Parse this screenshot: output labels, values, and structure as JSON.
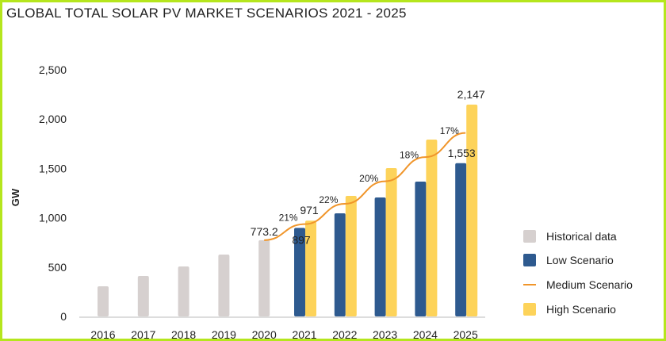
{
  "chart_data": {
    "type": "bar",
    "title": "GLOBAL TOTAL SOLAR PV MARKET SCENARIOS 2021 - 2025",
    "xlabel": "",
    "ylabel": "GW",
    "ylim": [
      0,
      2500
    ],
    "yticks": [
      0,
      500,
      1000,
      1500,
      2000,
      2500
    ],
    "ytick_labels": [
      "0",
      "500",
      "1,000",
      "1,500",
      "2,000",
      "2,500"
    ],
    "grid": false,
    "legend_position": "right",
    "categories": [
      "2016",
      "2017",
      "2018",
      "2019",
      "2020",
      "2021",
      "2022",
      "2023",
      "2024",
      "2025"
    ],
    "series": [
      {
        "name": "Historical data",
        "type": "bar",
        "color": "#d6d0cf",
        "values": [
          305,
          410,
          506,
          627,
          773.2,
          null,
          null,
          null,
          null,
          null
        ]
      },
      {
        "name": "Low Scenario",
        "type": "bar",
        "color": "#2e5a8f",
        "values": [
          null,
          null,
          null,
          null,
          null,
          897,
          1045,
          1206,
          1367,
          1553
        ]
      },
      {
        "name": "Medium Scenario",
        "type": "line",
        "color": "#f0952a",
        "values": [
          null,
          null,
          null,
          null,
          773.2,
          935,
          1141,
          1370,
          1615,
          1860
        ]
      },
      {
        "name": "High Scenario",
        "type": "bar",
        "color": "#fdd35a",
        "values": [
          null,
          null,
          null,
          null,
          null,
          971,
          1222,
          1503,
          1793,
          2147
        ]
      }
    ],
    "data_labels": [
      {
        "series": "Historical data",
        "category": "2020",
        "text": "773.2"
      },
      {
        "series": "Low Scenario",
        "category": "2021",
        "text": "897"
      },
      {
        "series": "High Scenario",
        "category": "2021",
        "text": "971"
      },
      {
        "series": "Low Scenario",
        "category": "2025",
        "text": "1,553"
      },
      {
        "series": "High Scenario",
        "category": "2025",
        "text": "2,147"
      }
    ],
    "growth_labels": [
      {
        "category": "2021",
        "text": "21%"
      },
      {
        "category": "2022",
        "text": "22%"
      },
      {
        "category": "2023",
        "text": "20%"
      },
      {
        "category": "2024",
        "text": "18%"
      },
      {
        "category": "2025",
        "text": "17%"
      }
    ]
  }
}
